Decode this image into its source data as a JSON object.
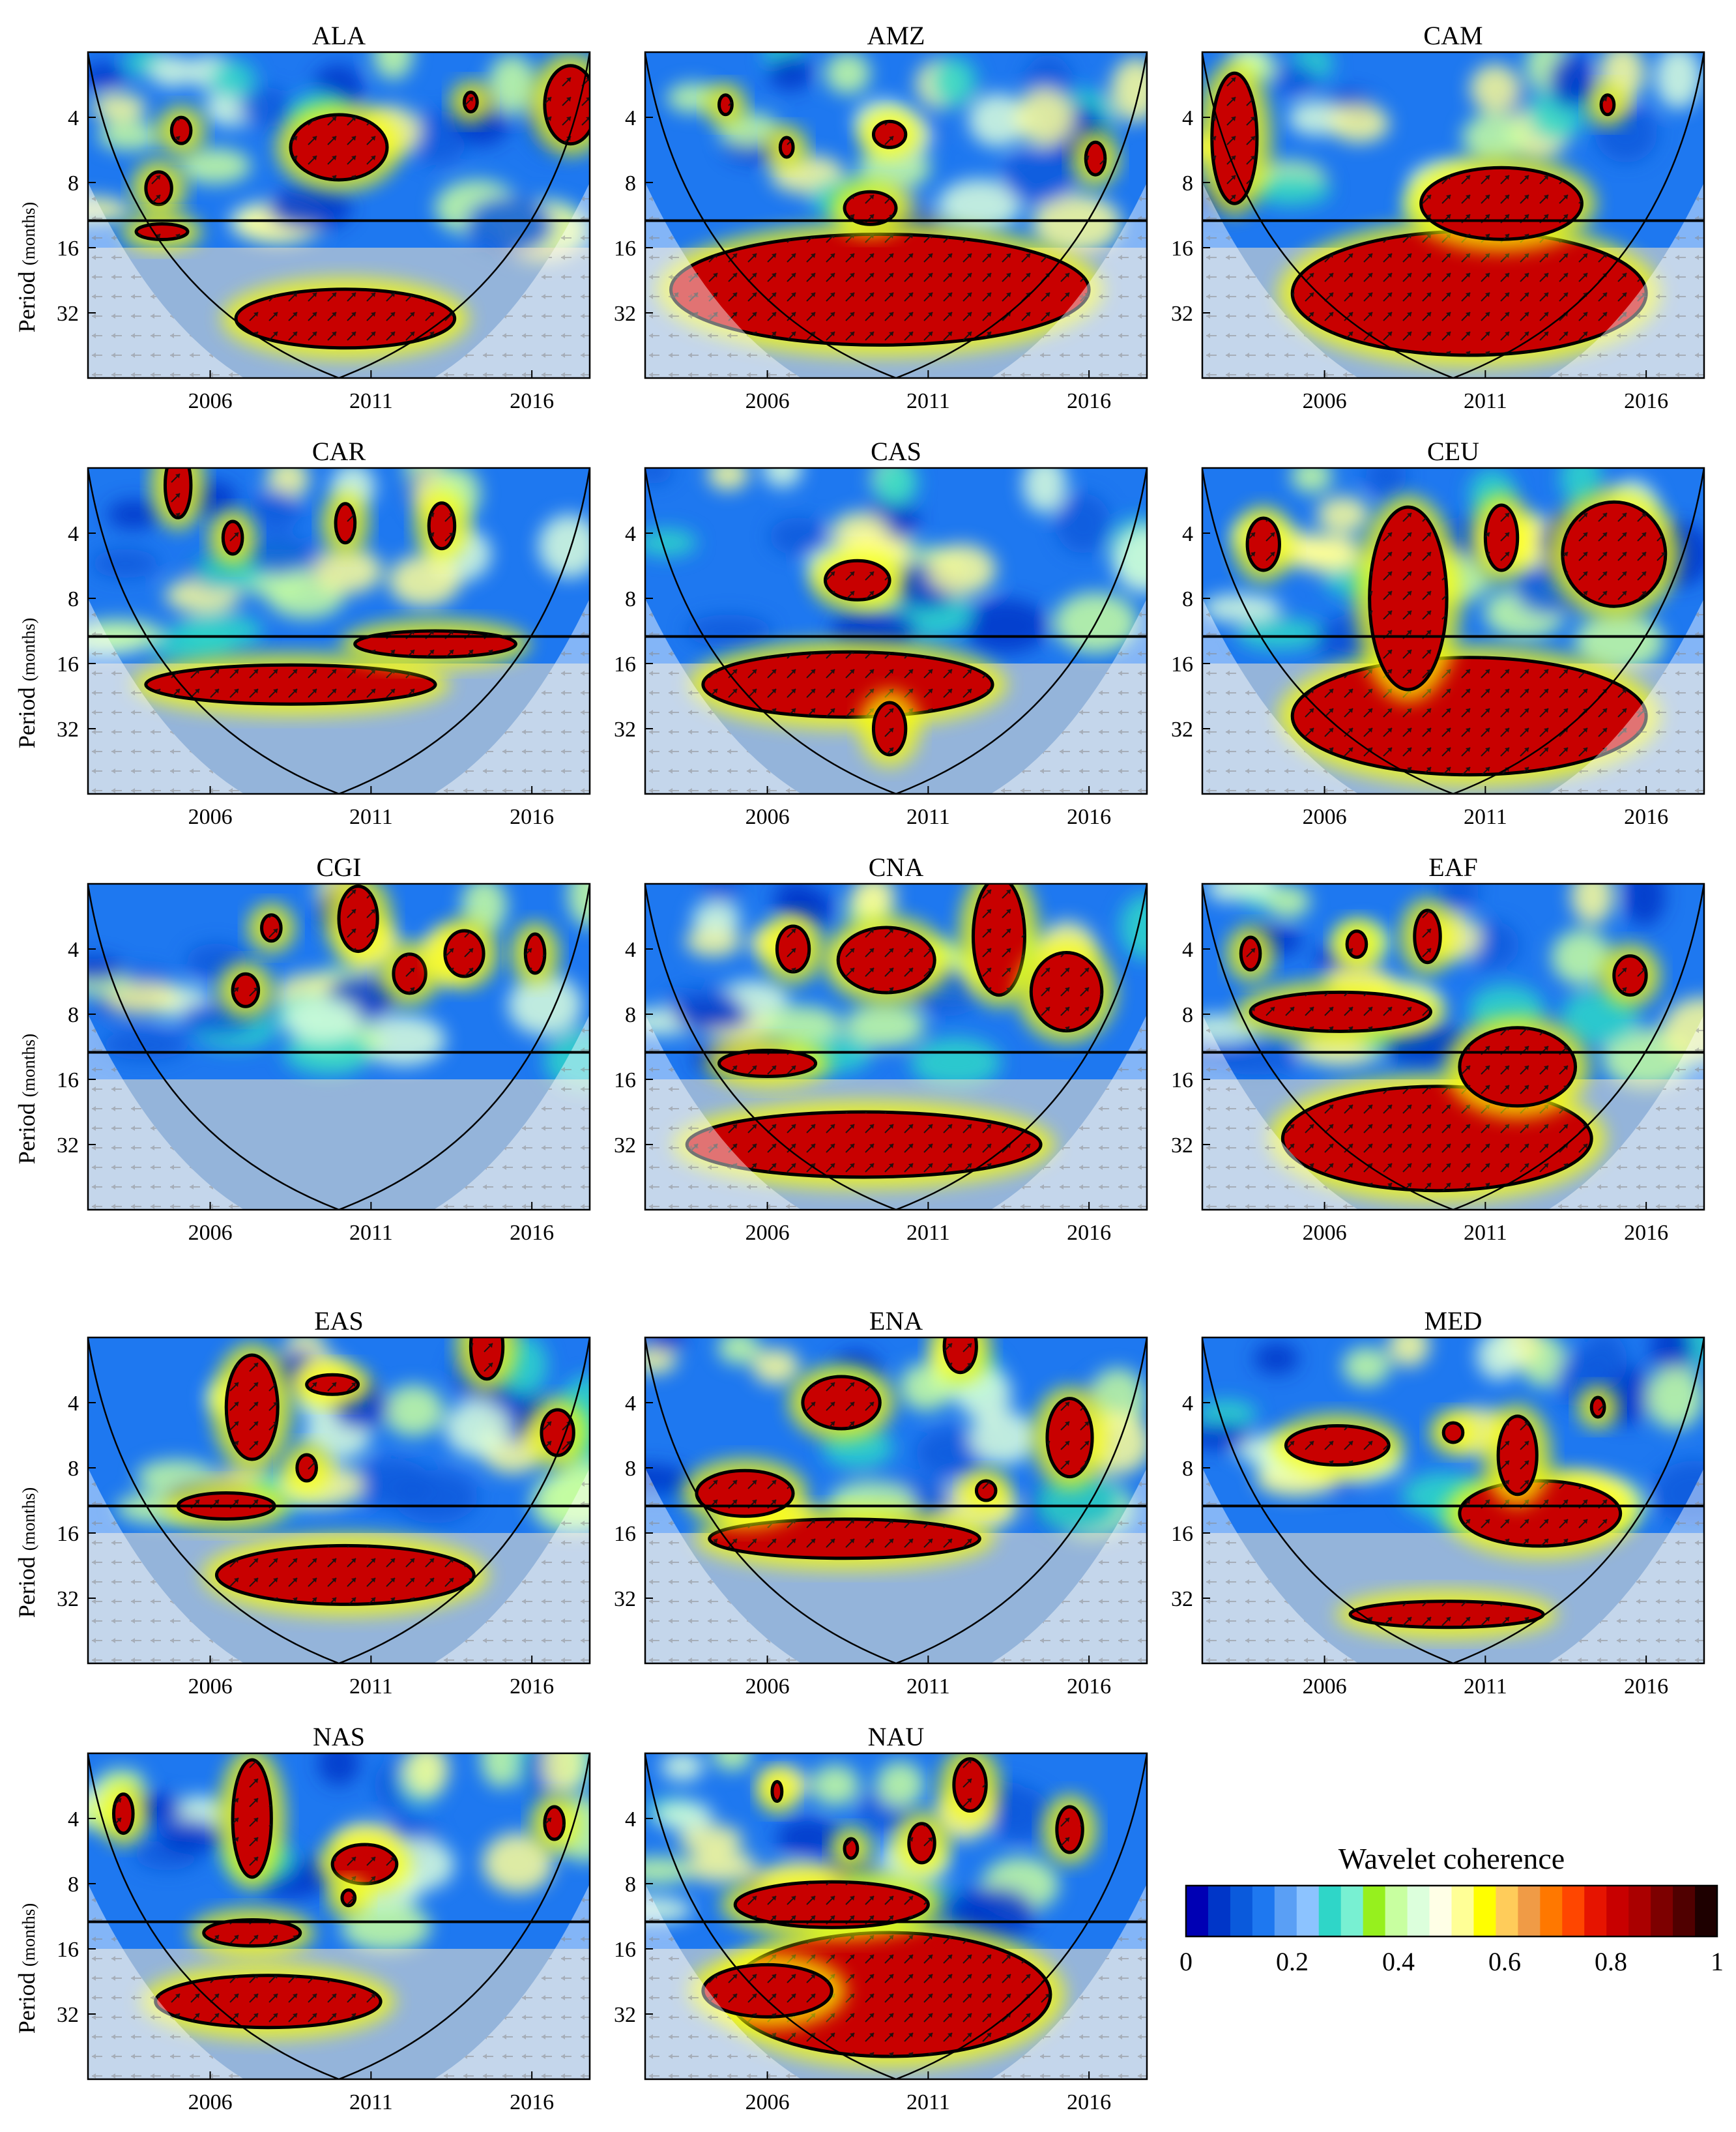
{
  "chart_data": {
    "type": "heatmap",
    "figure_kind": "wavelet coherence panels",
    "ylabel_main": "Period",
    "ylabel_unit": "(months)",
    "y_ticks": [
      4,
      8,
      16,
      32
    ],
    "y_scale": "log2",
    "y_range": [
      2,
      64
    ],
    "x_ticks": [
      2006,
      2011,
      2016
    ],
    "x_range": [
      2002.2,
      2017.8
    ],
    "reference_period_line": 12,
    "colorbar": {
      "title": "Wavelet coherence",
      "ticks": [
        "0",
        "0.2",
        "0.4",
        "0.6",
        "0.8",
        "1"
      ],
      "range": [
        0,
        1
      ],
      "colors": [
        "#0000b4",
        "#0036c8",
        "#0a5adc",
        "#1e78f0",
        "#5a9ff5",
        "#8cc3ff",
        "#2fd6c8",
        "#78f0d2",
        "#96f01e",
        "#c8ffa0",
        "#dcffdc",
        "#ffffe6",
        "#ffff96",
        "#ffff00",
        "#ffcc5a",
        "#f09b46",
        "#ff7800",
        "#ff4600",
        "#e61400",
        "#c80000",
        "#aa0000",
        "#7d0000",
        "#500000",
        "#1e0000"
      ]
    },
    "panels": [
      {
        "name": "ALA",
        "blobs": [
          [
            2010,
            5.5,
            1.5,
            0.5
          ],
          [
            2004.4,
            8.5,
            0.4,
            0.25
          ],
          [
            2005.1,
            4.6,
            0.3,
            0.2
          ],
          [
            2017.2,
            3.5,
            0.8,
            0.6
          ],
          [
            2014.1,
            3.4,
            0.2,
            0.15
          ],
          [
            2004.5,
            13.5,
            0.8,
            0.12
          ],
          [
            2010.2,
            34,
            3.4,
            0.45
          ]
        ],
        "coi_fade": "low"
      },
      {
        "name": "AMZ",
        "blobs": [
          [
            2009.5,
            25,
            6.5,
            0.85
          ],
          [
            2009.2,
            10.5,
            0.8,
            0.25
          ],
          [
            2009.8,
            4.8,
            0.5,
            0.2
          ],
          [
            2006.6,
            5.5,
            0.2,
            0.15
          ],
          [
            2004.7,
            3.5,
            0.2,
            0.15
          ],
          [
            2016.2,
            6.2,
            0.3,
            0.25
          ]
        ],
        "coi_fade": "high"
      },
      {
        "name": "CAM",
        "blobs": [
          [
            2010.5,
            26,
            5.5,
            0.95
          ],
          [
            2011.5,
            10,
            2.5,
            0.55
          ],
          [
            2003.2,
            5,
            0.7,
            1.0
          ],
          [
            2014.8,
            3.5,
            0.2,
            0.15
          ]
        ],
        "coi_fade": "high"
      },
      {
        "name": "CAR",
        "blobs": [
          [
            2008.5,
            20,
            4.5,
            0.3
          ],
          [
            2013,
            13,
            2.5,
            0.2
          ],
          [
            2006.7,
            4.2,
            0.3,
            0.25
          ],
          [
            2010.2,
            3.6,
            0.3,
            0.3
          ],
          [
            2013.2,
            3.7,
            0.4,
            0.35
          ],
          [
            2005,
            2.4,
            0.4,
            0.5
          ]
        ],
        "coi_fade": "high"
      },
      {
        "name": "CAS",
        "blobs": [
          [
            2008.5,
            20,
            4.5,
            0.5
          ],
          [
            2008.8,
            6.6,
            1,
            0.3
          ],
          [
            2009.8,
            32,
            0.5,
            0.4
          ]
        ],
        "coi_fade": "mid"
      },
      {
        "name": "CEU",
        "blobs": [
          [
            2010.5,
            28,
            5.5,
            0.9
          ],
          [
            2008.6,
            8,
            1.2,
            1.4
          ],
          [
            2015,
            5,
            1.6,
            0.8
          ],
          [
            2004.1,
            4.5,
            0.5,
            0.4
          ],
          [
            2011.5,
            4.2,
            0.5,
            0.5
          ]
        ],
        "coi_fade": "high"
      },
      {
        "name": "CGI",
        "blobs": [
          [
            2010.6,
            2.9,
            0.6,
            0.5
          ],
          [
            2012.2,
            5.2,
            0.5,
            0.3
          ],
          [
            2013.9,
            4.2,
            0.6,
            0.35
          ],
          [
            2007.1,
            6.2,
            0.4,
            0.25
          ],
          [
            2007.9,
            3.2,
            0.3,
            0.2
          ],
          [
            2016.1,
            4.2,
            0.3,
            0.3
          ]
        ],
        "coi_fade": "none"
      },
      {
        "name": "CNA",
        "blobs": [
          [
            2009,
            32,
            5.5,
            0.5
          ],
          [
            2006,
            13.5,
            1.5,
            0.2
          ],
          [
            2009.7,
            4.5,
            1.5,
            0.5
          ],
          [
            2013.2,
            3.5,
            0.8,
            0.9
          ],
          [
            2015.3,
            6.3,
            1.1,
            0.6
          ],
          [
            2006.8,
            4,
            0.5,
            0.35
          ]
        ],
        "coi_fade": "high"
      },
      {
        "name": "EAF",
        "blobs": [
          [
            2006.5,
            7.8,
            2.8,
            0.3
          ],
          [
            2009.5,
            30,
            4.8,
            0.8
          ],
          [
            2012,
            14,
            1.8,
            0.6
          ],
          [
            2003.7,
            4.2,
            0.3,
            0.25
          ],
          [
            2007,
            3.8,
            0.3,
            0.2
          ],
          [
            2009.2,
            3.5,
            0.4,
            0.4
          ],
          [
            2015.5,
            5.3,
            0.5,
            0.3
          ]
        ],
        "coi_fade": "high"
      },
      {
        "name": "EAS",
        "blobs": [
          [
            2010.2,
            25,
            4,
            0.45
          ],
          [
            2006.5,
            12,
            1.5,
            0.2
          ],
          [
            2007.3,
            4.2,
            0.8,
            0.8
          ],
          [
            2009.8,
            3.3,
            0.8,
            0.15
          ],
          [
            2009,
            8,
            0.3,
            0.2
          ],
          [
            2016.8,
            5.5,
            0.5,
            0.35
          ],
          [
            2014.6,
            2.2,
            0.5,
            0.5
          ]
        ],
        "coi_fade": "mid"
      },
      {
        "name": "ENA",
        "blobs": [
          [
            2008.4,
            17,
            4.2,
            0.3
          ],
          [
            2005.3,
            10.5,
            1.5,
            0.35
          ],
          [
            2008.3,
            4,
            1.2,
            0.4
          ],
          [
            2015.4,
            5.8,
            0.7,
            0.6
          ],
          [
            2012.8,
            10.2,
            0.3,
            0.15
          ],
          [
            2012,
            2.2,
            0.5,
            0.4
          ]
        ],
        "coi_fade": "mid"
      },
      {
        "name": "MED",
        "blobs": [
          [
            2006.4,
            6.3,
            1.6,
            0.3
          ],
          [
            2009.8,
            38,
            3,
            0.2
          ],
          [
            2012.7,
            13,
            2.5,
            0.5
          ],
          [
            2012,
            7,
            0.6,
            0.6
          ],
          [
            2010,
            5.5,
            0.3,
            0.15
          ],
          [
            2014.5,
            4.2,
            0.2,
            0.15
          ]
        ],
        "coi_fade": "low"
      },
      {
        "name": "NAS",
        "blobs": [
          [
            2007.8,
            28,
            3.5,
            0.4
          ],
          [
            2007.3,
            13.5,
            1.5,
            0.2
          ],
          [
            2007.3,
            4,
            0.6,
            0.9
          ],
          [
            2010.8,
            6.5,
            1,
            0.3
          ],
          [
            2003.3,
            3.8,
            0.3,
            0.3
          ],
          [
            2016.7,
            4.2,
            0.3,
            0.25
          ],
          [
            2010.3,
            9.3,
            0.2,
            0.12
          ]
        ],
        "coi_fade": "high"
      },
      {
        "name": "NAU",
        "blobs": [
          [
            2009.8,
            26,
            5,
            0.95
          ],
          [
            2008,
            10,
            3,
            0.35
          ],
          [
            2006,
            25,
            2,
            0.4
          ],
          [
            2010.8,
            5.2,
            0.4,
            0.3
          ],
          [
            2012.3,
            2.8,
            0.5,
            0.4
          ],
          [
            2015.4,
            4.5,
            0.4,
            0.35
          ],
          [
            2008.6,
            5.5,
            0.2,
            0.15
          ],
          [
            2006.3,
            3,
            0.15,
            0.15
          ]
        ],
        "coi_fade": "high"
      }
    ]
  }
}
